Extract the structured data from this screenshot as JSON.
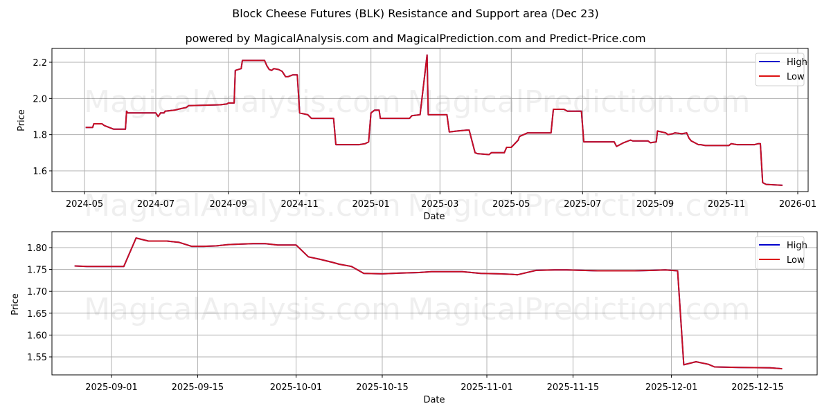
{
  "header": {
    "title": "Block Cheese Futures (BLK) Resistance and Support area (Dec 23)",
    "subtitle": "powered by MagicalAnalysis.com and MagicalPrediction.com and Predict-Price.com"
  },
  "watermarks": [
    "MagicalAnalysis.com",
    "MagicalPrediction.com"
  ],
  "colors": {
    "high": "#0000cc",
    "low": "#dd1111",
    "grid": "#b0b0b0"
  },
  "legend": {
    "high": "High",
    "low": "Low"
  },
  "chart_data": [
    {
      "type": "line",
      "title": "Block Cheese Futures (BLK) Resistance and Support area (Dec 23)",
      "xlabel": "Date",
      "ylabel": "Price",
      "ylim": [
        1.48,
        2.27
      ],
      "yticks": [
        "1.6",
        "1.8",
        "2.0",
        "2.2"
      ],
      "xticks": [
        "2024-05",
        "2024-07",
        "2024-09",
        "2024-11",
        "2025-01",
        "2025-03",
        "2025-05",
        "2025-07",
        "2025-09",
        "2025-11",
        "2026-01"
      ],
      "grid": true,
      "legend_position": "upper right",
      "series": [
        {
          "name": "High",
          "note": "overlaps Low"
        },
        {
          "name": "Low"
        }
      ],
      "x": [
        "2024-05-02",
        "2024-05-08",
        "2024-05-09",
        "2024-05-16",
        "2024-05-18",
        "2024-05-22",
        "2024-05-26",
        "2024-06-04",
        "2024-06-05",
        "2024-06-06",
        "2024-06-07",
        "2024-06-27",
        "2024-06-29",
        "2024-07-01",
        "2024-07-03",
        "2024-07-05",
        "2024-07-08",
        "2024-07-09",
        "2024-07-17",
        "2024-07-20",
        "2024-07-27",
        "2024-07-29",
        "2024-08-25",
        "2024-08-31",
        "2024-09-01",
        "2024-09-06",
        "2024-09-07",
        "2024-09-12",
        "2024-09-13",
        "2024-10-02",
        "2024-10-04",
        "2024-10-06",
        "2024-10-08",
        "2024-10-10",
        "2024-10-14",
        "2024-10-17",
        "2024-10-20",
        "2024-10-22",
        "2024-10-26",
        "2024-10-28",
        "2024-10-30",
        "2024-11-01",
        "2024-11-08",
        "2024-11-11",
        "2024-11-30",
        "2024-12-02",
        "2024-12-22",
        "2024-12-27",
        "2024-12-30",
        "2025-01-01",
        "2025-01-04",
        "2025-01-08",
        "2025-01-09",
        "2025-02-03",
        "2025-02-05",
        "2025-02-12",
        "2025-02-18",
        "2025-02-19",
        "2025-02-20",
        "2025-03-07",
        "2025-03-09",
        "2025-03-16",
        "2025-03-24",
        "2025-03-26",
        "2025-03-31",
        "2025-04-02",
        "2025-04-12",
        "2025-04-14",
        "2025-04-25",
        "2025-04-27",
        "2025-05-01",
        "2025-05-07",
        "2025-05-08",
        "2025-05-15",
        "2025-05-17",
        "2025-06-04",
        "2025-06-06",
        "2025-06-15",
        "2025-06-18",
        "2025-06-30",
        "2025-07-02",
        "2025-07-28",
        "2025-07-30",
        "2025-08-05",
        "2025-08-11",
        "2025-08-13",
        "2025-08-26",
        "2025-08-28",
        "2025-09-02",
        "2025-09-03",
        "2025-09-10",
        "2025-09-12",
        "2025-09-16",
        "2025-09-18",
        "2025-09-24",
        "2025-09-28",
        "2025-09-30",
        "2025-10-02",
        "2025-10-08",
        "2025-10-10",
        "2025-10-14",
        "2025-10-22",
        "2025-11-03",
        "2025-11-05",
        "2025-11-10",
        "2025-11-25",
        "2025-11-28",
        "2025-11-30",
        "2025-12-02",
        "2025-12-05",
        "2025-12-19"
      ],
      "values": [
        1.84,
        1.84,
        1.86,
        1.86,
        1.85,
        1.84,
        1.83,
        1.83,
        1.83,
        1.93,
        1.92,
        1.92,
        1.92,
        1.92,
        1.9,
        1.92,
        1.92,
        1.93,
        1.935,
        1.94,
        1.95,
        1.96,
        1.965,
        1.97,
        1.975,
        1.975,
        2.155,
        2.165,
        2.21,
        2.21,
        2.18,
        2.16,
        2.155,
        2.165,
        2.16,
        2.15,
        2.12,
        2.12,
        2.13,
        2.13,
        2.13,
        1.92,
        1.91,
        1.89,
        1.89,
        1.745,
        1.745,
        1.75,
        1.76,
        1.92,
        1.935,
        1.935,
        1.89,
        1.89,
        1.905,
        1.91,
        2.24,
        1.91,
        1.91,
        1.91,
        1.815,
        1.82,
        1.825,
        1.825,
        1.7,
        1.695,
        1.69,
        1.7,
        1.7,
        1.73,
        1.73,
        1.77,
        1.79,
        1.81,
        1.81,
        1.81,
        1.94,
        1.94,
        1.93,
        1.93,
        1.76,
        1.76,
        1.735,
        1.755,
        1.77,
        1.765,
        1.765,
        1.755,
        1.76,
        1.82,
        1.81,
        1.8,
        1.805,
        1.81,
        1.805,
        1.81,
        1.78,
        1.765,
        1.745,
        1.745,
        1.74,
        1.74,
        1.74,
        1.75,
        1.745,
        1.745,
        1.75,
        1.75,
        1.535,
        1.525,
        1.52
      ]
    },
    {
      "type": "line",
      "xlabel": "Date",
      "ylabel": "Price",
      "ylim": [
        1.507,
        1.836
      ],
      "yticks": [
        "1.55",
        "1.60",
        "1.65",
        "1.70",
        "1.75",
        "1.80"
      ],
      "xticks": [
        "2025-09-01",
        "2025-09-15",
        "2025-10-01",
        "2025-10-15",
        "2025-11-01",
        "2025-11-15",
        "2025-12-01",
        "2025-12-15"
      ],
      "grid": true,
      "legend_position": "upper right",
      "series": [
        {
          "name": "High",
          "note": "overlaps Low"
        },
        {
          "name": "Low"
        }
      ],
      "x": [
        "2025-08-26",
        "2025-08-28",
        "2025-09-03",
        "2025-09-05",
        "2025-09-07",
        "2025-09-10",
        "2025-09-12",
        "2025-09-14",
        "2025-09-16",
        "2025-09-18",
        "2025-09-20",
        "2025-09-22",
        "2025-09-24",
        "2025-09-26",
        "2025-09-28",
        "2025-09-30",
        "2025-10-01",
        "2025-10-03",
        "2025-10-05",
        "2025-10-07",
        "2025-10-08",
        "2025-10-10",
        "2025-10-12",
        "2025-10-15",
        "2025-10-18",
        "2025-10-21",
        "2025-10-23",
        "2025-10-28",
        "2025-10-31",
        "2025-11-03",
        "2025-11-05",
        "2025-11-06",
        "2025-11-09",
        "2025-11-12",
        "2025-11-14",
        "2025-11-19",
        "2025-11-23",
        "2025-11-25",
        "2025-11-28",
        "2025-11-30",
        "2025-12-02",
        "2025-12-03",
        "2025-12-05",
        "2025-12-07",
        "2025-12-08",
        "2025-12-12",
        "2025-12-17",
        "2025-12-19"
      ],
      "values": [
        1.758,
        1.757,
        1.757,
        1.822,
        1.815,
        1.815,
        1.812,
        1.803,
        1.803,
        1.804,
        1.807,
        1.808,
        1.809,
        1.809,
        1.806,
        1.806,
        1.806,
        1.779,
        1.773,
        1.766,
        1.762,
        1.757,
        1.741,
        1.74,
        1.742,
        1.743,
        1.745,
        1.745,
        1.741,
        1.74,
        1.739,
        1.738,
        1.748,
        1.749,
        1.749,
        1.747,
        1.747,
        1.747,
        1.748,
        1.749,
        1.747,
        1.532,
        1.539,
        1.533,
        1.527,
        1.526,
        1.525,
        1.523
      ]
    }
  ]
}
